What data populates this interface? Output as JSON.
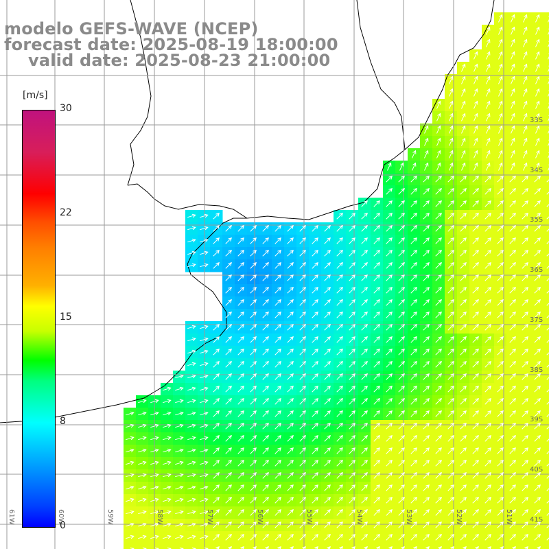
{
  "title": {
    "line1": "modelo GEFS-WAVE (NCEP)",
    "line2": "forecast date: 2025-08-19 18:00:00",
    "line3": "valid date: 2025-08-23 21:00:00"
  },
  "colorbar": {
    "units": "[m/s]",
    "ticks": [
      {
        "label": "30",
        "value": 30
      },
      {
        "label": "22",
        "value": 22
      },
      {
        "label": "15",
        "value": 15
      },
      {
        "label": "8",
        "value": 8
      },
      {
        "label": "0",
        "value": 0
      }
    ],
    "colors": [
      "#c0127e",
      "#ff0000",
      "#ff7f00",
      "#ffff00",
      "#00ff00",
      "#00ffff",
      "#0000ff"
    ]
  },
  "map": {
    "lat_labels": [
      "33S",
      "34S",
      "35S",
      "36S",
      "37S",
      "38S",
      "39S",
      "40S",
      "41S"
    ],
    "lon_labels": [
      "61W",
      "60W",
      "59W",
      "58W",
      "57W",
      "56W",
      "55W",
      "54W",
      "53W",
      "52W",
      "51W"
    ],
    "land_color": "#ffffff",
    "grid_color": "#9a9a9a",
    "arrow_color": "#ffffff",
    "wind_direction": "southwest-to-northeast"
  }
}
